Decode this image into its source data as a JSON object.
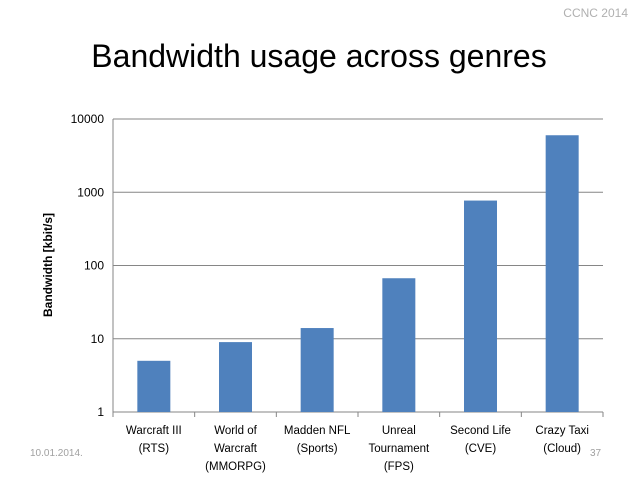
{
  "slide": {
    "conference": "CCNC 2014",
    "title": "Bandwidth usage across genres",
    "date": "10.01.2014.",
    "page_number": "37"
  },
  "chart_data": {
    "type": "bar",
    "title": "",
    "xlabel": "",
    "ylabel": "Bandwidth [kbit/s]",
    "yscale": "log",
    "ylim": [
      1,
      10000
    ],
    "yticks": [
      "1",
      "10",
      "100",
      "1000",
      "10000"
    ],
    "grid": true,
    "categories": [
      [
        "Warcraft III",
        "(RTS)"
      ],
      [
        "World of",
        "Warcraft",
        "(MMORPG)"
      ],
      [
        "Madden NFL",
        "(Sports)"
      ],
      [
        "Unreal",
        "Tournament",
        "(FPS)"
      ],
      [
        "Second Life",
        "(CVE)"
      ],
      [
        "Crazy Taxi",
        "(Cloud)"
      ]
    ],
    "values": [
      5,
      9,
      14,
      67,
      770,
      6000
    ],
    "colors": {
      "bar": "#4f81bd",
      "grid": "#868686",
      "axis": "#868686"
    }
  }
}
